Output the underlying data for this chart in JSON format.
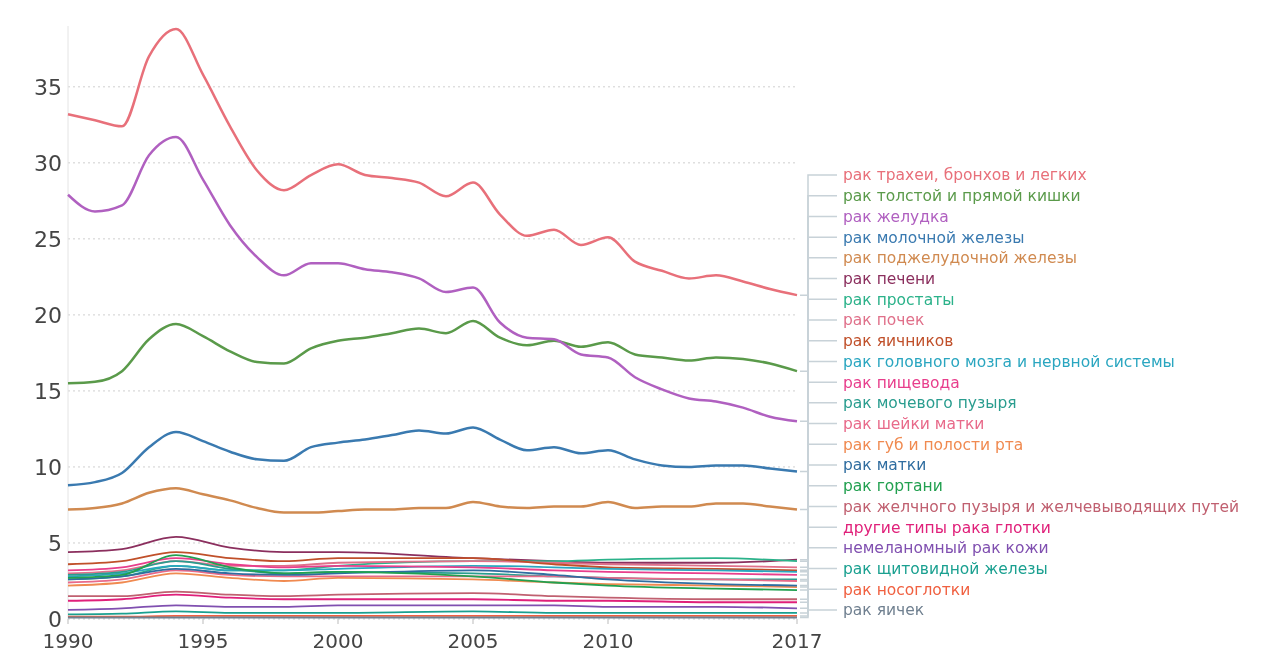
{
  "chart_data": {
    "type": "line",
    "x": [
      1990,
      1991,
      1992,
      1993,
      1994,
      1995,
      1996,
      1997,
      1998,
      1999,
      2000,
      2001,
      2002,
      2003,
      2004,
      2005,
      2006,
      2007,
      2008,
      2009,
      2010,
      2011,
      2012,
      2013,
      2014,
      2015,
      2016,
      2017
    ],
    "xlim": [
      1990,
      2017
    ],
    "xticks": [
      1990,
      1995,
      2000,
      2005,
      2010,
      2017
    ],
    "ylim": [
      0,
      39
    ],
    "yticks": [
      0,
      5,
      10,
      15,
      20,
      25,
      30,
      35
    ],
    "grid": "y",
    "legend": "right",
    "marker": "none",
    "line_style": "solid",
    "series": [
      {
        "name": "рак трахеи, бронхов и легких",
        "color": "#e8707a",
        "values": [
          33.2,
          32.8,
          32.4,
          37.0,
          38.8,
          35.8,
          32.4,
          29.5,
          28.2,
          29.2,
          29.9,
          29.2,
          29.0,
          28.7,
          27.8,
          28.7,
          26.6,
          25.2,
          25.6,
          24.6,
          25.1,
          23.5,
          22.9,
          22.4,
          22.6,
          22.2,
          21.7,
          21.3
        ]
      },
      {
        "name": "рак толстой и прямой кишки",
        "color": "#5a9a4a",
        "values": [
          15.5,
          15.6,
          16.3,
          18.4,
          19.4,
          18.6,
          17.6,
          16.9,
          16.8,
          17.8,
          18.3,
          18.5,
          18.8,
          19.1,
          18.8,
          19.6,
          18.5,
          18.0,
          18.3,
          17.9,
          18.2,
          17.4,
          17.2,
          17.0,
          17.2,
          17.1,
          16.8,
          16.3
        ]
      },
      {
        "name": "рак желудка",
        "color": "#b060c0",
        "values": [
          27.9,
          26.8,
          27.2,
          30.5,
          31.7,
          28.9,
          25.9,
          23.8,
          22.6,
          23.4,
          23.4,
          23.0,
          22.8,
          22.4,
          21.5,
          21.8,
          19.5,
          18.5,
          18.4,
          17.4,
          17.2,
          15.9,
          15.1,
          14.5,
          14.3,
          13.9,
          13.3,
          13.0
        ]
      },
      {
        "name": "рак молочной железы",
        "color": "#3a7ab0",
        "values": [
          8.8,
          9.0,
          9.6,
          11.3,
          12.3,
          11.7,
          11.0,
          10.5,
          10.4,
          11.3,
          11.6,
          11.8,
          12.1,
          12.4,
          12.2,
          12.6,
          11.8,
          11.1,
          11.3,
          10.9,
          11.1,
          10.5,
          10.1,
          10.0,
          10.1,
          10.1,
          9.9,
          9.7
        ]
      },
      {
        "name": "рак поджелудочной железы",
        "color": "#d08a50",
        "values": [
          7.2,
          7.3,
          7.6,
          8.3,
          8.6,
          8.2,
          7.8,
          7.3,
          7.0,
          7.0,
          7.1,
          7.2,
          7.2,
          7.3,
          7.3,
          7.7,
          7.4,
          7.3,
          7.4,
          7.4,
          7.7,
          7.3,
          7.4,
          7.4,
          7.6,
          7.6,
          7.4,
          7.2
        ]
      },
      {
        "name": "рак печени",
        "color": "#8b2f5e",
        "x": [
          1990,
          1992,
          1994,
          1996,
          1998,
          2000,
          2005,
          2008,
          2010,
          2014,
          2017
        ],
        "values": [
          4.4,
          4.6,
          5.4,
          4.7,
          4.4,
          4.4,
          4.0,
          3.8,
          3.7,
          3.7,
          3.9
        ]
      },
      {
        "name": "рак простаты",
        "color": "#2bb28a",
        "x": [
          1990,
          1992,
          1994,
          1996,
          1998,
          2000,
          2005,
          2008,
          2010,
          2014,
          2017
        ],
        "values": [
          2.6,
          2.8,
          3.5,
          3.2,
          3.2,
          3.5,
          3.8,
          3.8,
          3.9,
          4.0,
          3.8
        ]
      },
      {
        "name": "рак почек",
        "color": "#e0708a",
        "x": [
          1990,
          1992,
          1994,
          1996,
          1998,
          2000,
          2005,
          2008,
          2010,
          2014,
          2017
        ],
        "values": [
          3.0,
          3.2,
          3.8,
          3.5,
          3.5,
          3.7,
          3.8,
          3.7,
          3.6,
          3.5,
          3.4
        ]
      },
      {
        "name": "рак яичников",
        "color": "#c0502a",
        "x": [
          1990,
          1992,
          1994,
          1996,
          1998,
          2000,
          2005,
          2008,
          2010,
          2014,
          2017
        ],
        "values": [
          3.6,
          3.8,
          4.4,
          4.0,
          3.8,
          4.0,
          4.0,
          3.6,
          3.4,
          3.3,
          3.2
        ]
      },
      {
        "name": "рак головного мозга и нервной системы",
        "color": "#2aa6c0",
        "x": [
          1990,
          1992,
          1994,
          1996,
          1998,
          2000,
          2005,
          2008,
          2010,
          2014,
          2017
        ],
        "values": [
          2.8,
          3.0,
          3.5,
          3.2,
          3.2,
          3.3,
          3.5,
          3.4,
          3.3,
          3.2,
          3.1
        ]
      },
      {
        "name": "рак пищевода",
        "color": "#e83e8c",
        "x": [
          1990,
          1992,
          1994,
          1996,
          1998,
          2000,
          2005,
          2008,
          2010,
          2014,
          2017
        ],
        "values": [
          3.2,
          3.4,
          4.0,
          3.6,
          3.4,
          3.5,
          3.4,
          3.2,
          3.1,
          3.0,
          2.9
        ]
      },
      {
        "name": "рак мочевого пузыря",
        "color": "#2a9d8f",
        "x": [
          1990,
          1992,
          1994,
          1996,
          1998,
          2000,
          2005,
          2008,
          2010,
          2014,
          2017
        ],
        "values": [
          2.9,
          3.1,
          3.8,
          3.3,
          3.0,
          3.1,
          3.0,
          2.8,
          2.7,
          2.6,
          2.6
        ]
      },
      {
        "name": "рак шейки матки",
        "color": "#e86a8a",
        "x": [
          1990,
          1992,
          1994,
          1996,
          1998,
          2000,
          2005,
          2008,
          2010,
          2014,
          2017
        ],
        "values": [
          2.4,
          2.6,
          3.2,
          2.9,
          2.8,
          2.8,
          2.8,
          2.8,
          2.7,
          2.6,
          2.5
        ]
      },
      {
        "name": "рак губ и полости рта",
        "color": "#f08a50",
        "x": [
          1990,
          1992,
          1994,
          1996,
          1998,
          2000,
          2005,
          2008,
          2010,
          2014,
          2017
        ],
        "values": [
          2.2,
          2.4,
          3.0,
          2.7,
          2.5,
          2.7,
          2.6,
          2.4,
          2.3,
          2.2,
          2.1
        ]
      },
      {
        "name": "рак матки",
        "color": "#2f6da0",
        "x": [
          1990,
          1992,
          1994,
          1996,
          1998,
          2000,
          2005,
          2008,
          2010,
          2014,
          2017
        ],
        "values": [
          2.6,
          2.8,
          3.3,
          3.0,
          2.9,
          3.0,
          3.2,
          2.9,
          2.6,
          2.3,
          2.2
        ]
      },
      {
        "name": "рак гортани",
        "color": "#22a050",
        "x": [
          1990,
          1992,
          1994,
          1996,
          1998,
          2000,
          2005,
          2008,
          2010,
          2014,
          2017
        ],
        "values": [
          2.7,
          2.9,
          4.2,
          3.4,
          3.0,
          3.1,
          2.8,
          2.4,
          2.2,
          2.0,
          1.9
        ]
      },
      {
        "name": "рак желчного пузыря и желчевыводящих путей",
        "color": "#c06070",
        "x": [
          1990,
          1992,
          1994,
          1996,
          1998,
          2000,
          2005,
          2008,
          2010,
          2014,
          2017
        ],
        "values": [
          1.5,
          1.5,
          1.8,
          1.6,
          1.5,
          1.6,
          1.7,
          1.5,
          1.4,
          1.3,
          1.3
        ]
      },
      {
        "name": "другие типы рака глотки",
        "color": "#e0207a",
        "x": [
          1990,
          1992,
          1994,
          1996,
          1998,
          2000,
          2005,
          2008,
          2010,
          2014,
          2017
        ],
        "values": [
          1.2,
          1.3,
          1.6,
          1.4,
          1.3,
          1.3,
          1.3,
          1.2,
          1.2,
          1.1,
          1.1
        ]
      },
      {
        "name": "немеланомный рак кожи",
        "color": "#8050b0",
        "x": [
          1990,
          1992,
          1994,
          1996,
          1998,
          2000,
          2005,
          2008,
          2010,
          2014,
          2017
        ],
        "values": [
          0.6,
          0.7,
          0.9,
          0.8,
          0.8,
          0.9,
          0.9,
          0.9,
          0.8,
          0.8,
          0.7
        ]
      },
      {
        "name": "рак щитовидной железы",
        "color": "#1aa090",
        "x": [
          1990,
          1992,
          1994,
          1996,
          1998,
          2000,
          2005,
          2008,
          2010,
          2014,
          2017
        ],
        "values": [
          0.3,
          0.35,
          0.5,
          0.4,
          0.4,
          0.4,
          0.5,
          0.4,
          0.4,
          0.4,
          0.4
        ]
      },
      {
        "name": "рак носоглотки",
        "color": "#f06040",
        "x": [
          1990,
          1992,
          1994,
          1996,
          1998,
          2000,
          2005,
          2008,
          2010,
          2014,
          2017
        ],
        "values": [
          0.15,
          0.15,
          0.2,
          0.2,
          0.2,
          0.2,
          0.2,
          0.2,
          0.2,
          0.2,
          0.2
        ]
      },
      {
        "name": "рак яичек",
        "color": "#708090",
        "x": [
          1990,
          1992,
          1994,
          1996,
          1998,
          2000,
          2005,
          2008,
          2010,
          2014,
          2017
        ],
        "values": [
          0.1,
          0.1,
          0.1,
          0.1,
          0.1,
          0.1,
          0.1,
          0.1,
          0.1,
          0.1,
          0.1
        ]
      }
    ]
  }
}
